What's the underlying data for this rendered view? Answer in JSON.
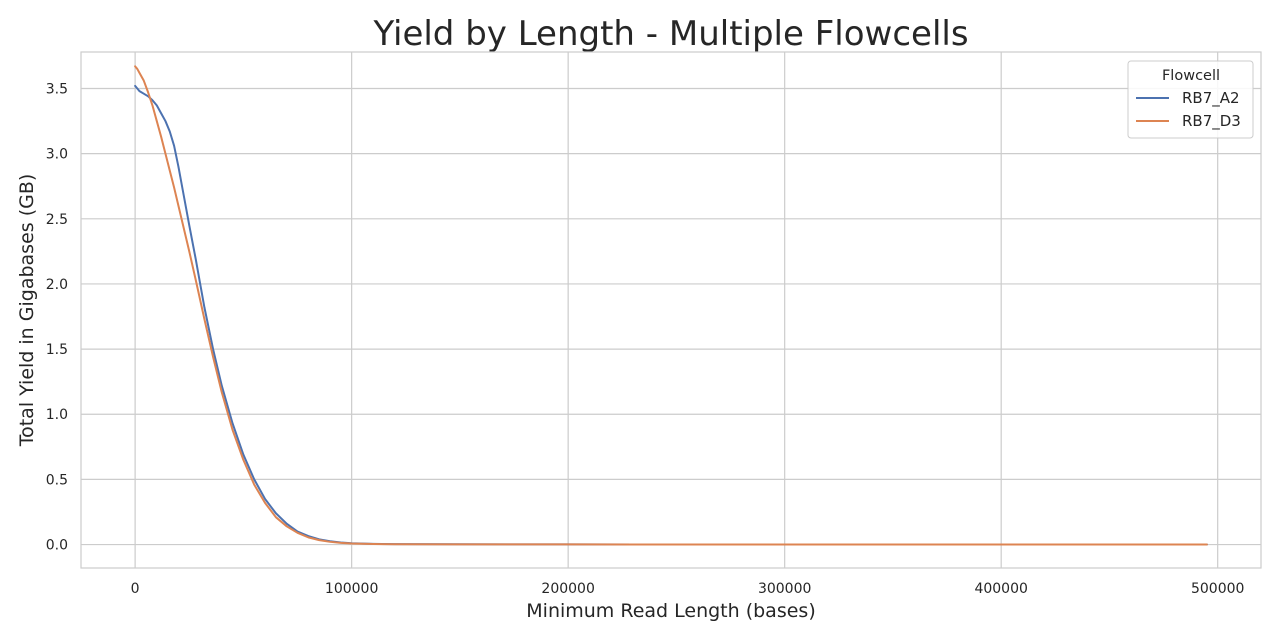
{
  "chart_data": {
    "type": "line",
    "title": "Yield by Length - Multiple Flowcells",
    "xlabel": "Minimum Read Length (bases)",
    "ylabel": "Total Yield in Gigabases (GB)",
    "xlim": [
      -25000,
      520000
    ],
    "ylim": [
      -0.18,
      3.78
    ],
    "xticks": [
      0,
      100000,
      200000,
      300000,
      400000,
      500000
    ],
    "yticks": [
      0.0,
      0.5,
      1.0,
      1.5,
      2.0,
      2.5,
      3.0,
      3.5
    ],
    "xtick_labels": [
      "0",
      "100000",
      "200000",
      "300000",
      "400000",
      "500000"
    ],
    "ytick_labels": [
      "0.0",
      "0.5",
      "1.0",
      "1.5",
      "2.0",
      "2.5",
      "3.0",
      "3.5"
    ],
    "grid": true,
    "legend": {
      "title": "Flowcell",
      "position": "top-right"
    },
    "series": [
      {
        "name": "RB7_A2",
        "color": "#4c72b0",
        "points": [
          [
            0,
            3.52
          ],
          [
            2000,
            3.48
          ],
          [
            4000,
            3.46
          ],
          [
            6000,
            3.44
          ],
          [
            8000,
            3.41
          ],
          [
            10000,
            3.37
          ],
          [
            12000,
            3.31
          ],
          [
            14000,
            3.25
          ],
          [
            16000,
            3.17
          ],
          [
            18000,
            3.06
          ],
          [
            20000,
            2.9
          ],
          [
            22000,
            2.72
          ],
          [
            25000,
            2.45
          ],
          [
            28000,
            2.19
          ],
          [
            32000,
            1.82
          ],
          [
            36000,
            1.5
          ],
          [
            40000,
            1.22
          ],
          [
            45000,
            0.93
          ],
          [
            50000,
            0.69
          ],
          [
            55000,
            0.5
          ],
          [
            60000,
            0.35
          ],
          [
            65000,
            0.24
          ],
          [
            70000,
            0.16
          ],
          [
            75000,
            0.1
          ],
          [
            80000,
            0.065
          ],
          [
            85000,
            0.04
          ],
          [
            90000,
            0.025
          ],
          [
            95000,
            0.016
          ],
          [
            100000,
            0.01
          ],
          [
            110000,
            0.005
          ],
          [
            120000,
            0.003
          ],
          [
            150000,
            0.002
          ],
          [
            200000,
            0.001
          ],
          [
            300000,
            0.0005
          ],
          [
            400000,
            0.0002
          ],
          [
            480000,
            0.0001
          ],
          [
            495000,
            0.0
          ]
        ]
      },
      {
        "name": "RB7_D3",
        "color": "#dd8452",
        "points": [
          [
            0,
            3.67
          ],
          [
            1000,
            3.65
          ],
          [
            2000,
            3.62
          ],
          [
            4000,
            3.56
          ],
          [
            6000,
            3.47
          ],
          [
            8000,
            3.37
          ],
          [
            10000,
            3.25
          ],
          [
            12000,
            3.13
          ],
          [
            14000,
            3.0
          ],
          [
            16000,
            2.87
          ],
          [
            18000,
            2.74
          ],
          [
            20000,
            2.6
          ],
          [
            22000,
            2.46
          ],
          [
            25000,
            2.25
          ],
          [
            28000,
            2.03
          ],
          [
            32000,
            1.73
          ],
          [
            36000,
            1.44
          ],
          [
            40000,
            1.17
          ],
          [
            45000,
            0.88
          ],
          [
            50000,
            0.65
          ],
          [
            55000,
            0.46
          ],
          [
            60000,
            0.32
          ],
          [
            65000,
            0.21
          ],
          [
            70000,
            0.14
          ],
          [
            75000,
            0.09
          ],
          [
            80000,
            0.055
          ],
          [
            85000,
            0.034
          ],
          [
            90000,
            0.021
          ],
          [
            95000,
            0.013
          ],
          [
            100000,
            0.008
          ],
          [
            110000,
            0.004
          ],
          [
            120000,
            0.002
          ],
          [
            150000,
            0.0015
          ],
          [
            200000,
            0.001
          ],
          [
            300000,
            0.0005
          ],
          [
            400000,
            0.0002
          ],
          [
            480000,
            0.0001
          ],
          [
            495000,
            0.0
          ]
        ]
      }
    ]
  }
}
